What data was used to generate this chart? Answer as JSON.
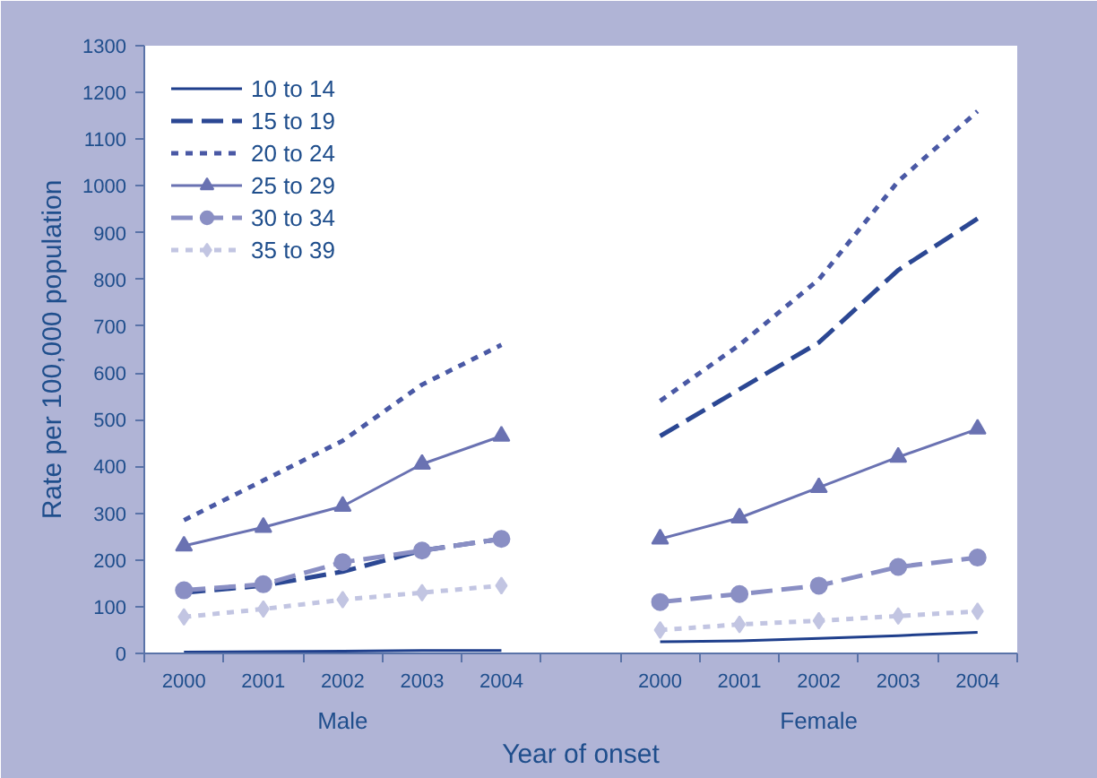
{
  "chart_data": {
    "type": "line",
    "ylabel": "Rate per 100,000 population",
    "xlabel": "Year of onset",
    "categories": [
      "2000",
      "2001",
      "2002",
      "2003",
      "2004",
      null,
      "2000",
      "2001",
      "2002",
      "2003",
      "2004"
    ],
    "annotations": [
      "Male",
      "Female"
    ],
    "ylim": [
      0,
      1300
    ],
    "yticks": [
      0,
      100,
      200,
      300,
      400,
      500,
      600,
      700,
      800,
      900,
      1000,
      1100,
      1200,
      1300
    ],
    "grid": false,
    "legend": "top left",
    "series": [
      {
        "name": "10 to 14",
        "color": "#1f3f8c",
        "line_style": "solid",
        "marker": "none",
        "values": [
          3,
          4,
          5,
          6,
          6,
          null,
          25,
          27,
          32,
          38,
          45
        ]
      },
      {
        "name": "15 to 19",
        "color": "#2b4793",
        "line_style": "dashed",
        "marker": "none",
        "values": [
          130,
          145,
          175,
          220,
          245,
          null,
          465,
          565,
          665,
          820,
          930
        ]
      },
      {
        "name": "20 to 24",
        "color": "#4a59a5",
        "line_style": "dotted",
        "marker": "none",
        "values": [
          285,
          370,
          455,
          575,
          660,
          null,
          540,
          660,
          800,
          1010,
          1160
        ]
      },
      {
        "name": "25 to 29",
        "color": "#6a72b2",
        "line_style": "solid",
        "marker": "triangle",
        "values": [
          230,
          270,
          315,
          405,
          465,
          null,
          245,
          290,
          355,
          420,
          480
        ]
      },
      {
        "name": "30 to 34",
        "color": "#8a8fc4",
        "line_style": "dashed",
        "marker": "circle",
        "values": [
          135,
          148,
          195,
          220,
          245,
          null,
          110,
          127,
          145,
          185,
          205
        ]
      },
      {
        "name": "35 to 39",
        "color": "#c2c5e2",
        "line_style": "dotted",
        "marker": "diamond",
        "values": [
          78,
          95,
          115,
          130,
          145,
          null,
          50,
          62,
          70,
          80,
          90
        ]
      }
    ]
  }
}
